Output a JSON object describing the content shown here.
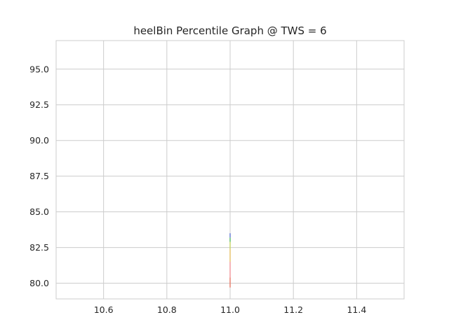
{
  "chart_data": {
    "type": "line",
    "title": "heelBin Percentile Graph @ TWS = 6",
    "xlabel": "",
    "ylabel": "",
    "xlim": [
      10.45,
      11.55
    ],
    "ylim": [
      78.9,
      97.0
    ],
    "grid": true,
    "x_ticks": [
      "10.6",
      "10.8",
      "11.0",
      "11.2",
      "11.4"
    ],
    "x_tick_values": [
      10.6,
      10.8,
      11.0,
      11.2,
      11.4
    ],
    "y_ticks": [
      "80.0",
      "82.5",
      "85.0",
      "87.5",
      "90.0",
      "92.5",
      "95.0"
    ],
    "y_tick_values": [
      80.0,
      82.5,
      85.0,
      87.5,
      90.0,
      92.5,
      95.0
    ],
    "series": [
      {
        "x": [
          11.0,
          11.0
        ],
        "y": [
          79.7,
          80.4
        ],
        "color": "#e8806f"
      },
      {
        "x": [
          11.0,
          11.0
        ],
        "y": [
          80.4,
          81.5
        ],
        "color": "#f39aa0"
      },
      {
        "x": [
          11.0,
          11.0
        ],
        "y": [
          81.5,
          82.4
        ],
        "color": "#e8c46f"
      },
      {
        "x": [
          11.0,
          11.0
        ],
        "y": [
          82.4,
          82.9
        ],
        "color": "#c9d66a"
      },
      {
        "x": [
          11.0,
          11.0
        ],
        "y": [
          82.9,
          83.2
        ],
        "color": "#5fbf6f"
      },
      {
        "x": [
          11.0,
          11.0
        ],
        "y": [
          83.2,
          83.5
        ],
        "color": "#6a7fd6"
      }
    ]
  }
}
